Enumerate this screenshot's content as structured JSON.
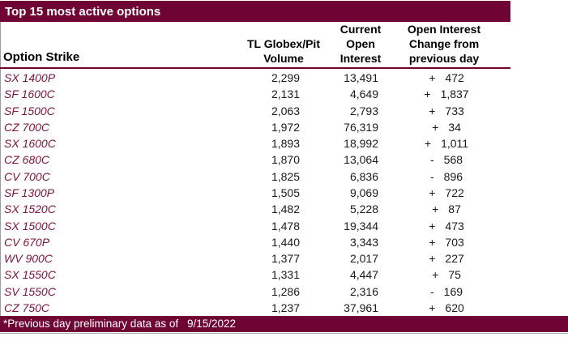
{
  "title_bar": {
    "title": "Top 15 most active options"
  },
  "header": {
    "strike_label": "Option Strike",
    "volume_lines": [
      "TL Globex/Pit",
      "Volume"
    ],
    "open_interest_lines": [
      "Current",
      "Open",
      "Interest"
    ],
    "change_lines": [
      "Open Interest",
      "Change from",
      "previous day"
    ]
  },
  "rows": [
    {
      "strike": "SX 1400P",
      "volume": "2,299",
      "open_interest": "13,491",
      "change_sign": "+",
      "change_value": "472"
    },
    {
      "strike": "SF 1600C",
      "volume": "2,131",
      "open_interest": "4,649",
      "change_sign": "+",
      "change_value": "1,837"
    },
    {
      "strike": "SF 1500C",
      "volume": "2,063",
      "open_interest": "2,793",
      "change_sign": "+",
      "change_value": "733"
    },
    {
      "strike": "CZ 700C",
      "volume": "1,972",
      "open_interest": "76,319",
      "change_sign": "+",
      "change_value": "34"
    },
    {
      "strike": "SX 1600C",
      "volume": "1,893",
      "open_interest": "18,992",
      "change_sign": "+",
      "change_value": "1,011"
    },
    {
      "strike": "CZ 680C",
      "volume": "1,870",
      "open_interest": "13,064",
      "change_sign": "-",
      "change_value": "568"
    },
    {
      "strike": "CV 700C",
      "volume": "1,825",
      "open_interest": "6,836",
      "change_sign": "-",
      "change_value": "896"
    },
    {
      "strike": "SF 1300P",
      "volume": "1,505",
      "open_interest": "9,069",
      "change_sign": "+",
      "change_value": "722"
    },
    {
      "strike": "SX 1520C",
      "volume": "1,482",
      "open_interest": "5,228",
      "change_sign": "+",
      "change_value": "87"
    },
    {
      "strike": "SX 1500C",
      "volume": "1,478",
      "open_interest": "19,344",
      "change_sign": "+",
      "change_value": "473"
    },
    {
      "strike": "CV 670P",
      "volume": "1,440",
      "open_interest": "3,343",
      "change_sign": "+",
      "change_value": "703"
    },
    {
      "strike": "WV 900C",
      "volume": "1,377",
      "open_interest": "2,017",
      "change_sign": "+",
      "change_value": "227"
    },
    {
      "strike": "SX 1550C",
      "volume": "1,331",
      "open_interest": "4,447",
      "change_sign": "+",
      "change_value": "75"
    },
    {
      "strike": "SV 1550C",
      "volume": "1,286",
      "open_interest": "2,316",
      "change_sign": "-",
      "change_value": "169"
    },
    {
      "strike": "CZ 750C",
      "volume": "1,237",
      "open_interest": "37,961",
      "change_sign": "+",
      "change_value": "620"
    }
  ],
  "footer": {
    "note": "*Previous day preliminary data as of",
    "date": "9/15/2022"
  },
  "colors": {
    "maroon": "#6e0334",
    "strike_text": "#7a1636",
    "body_text": "#1a1a1a",
    "border_gray": "#9d9d9d"
  },
  "chart_data": {
    "type": "table",
    "title": "Top 15 most active options",
    "columns": [
      "Option Strike",
      "TL Globex/Pit Volume",
      "Current Open Interest",
      "Open Interest Change from previous day"
    ],
    "rows": [
      [
        "SX 1400P",
        2299,
        13491,
        "+472"
      ],
      [
        "SF 1600C",
        2131,
        4649,
        "+1837"
      ],
      [
        "SF 1500C",
        2063,
        2793,
        "+733"
      ],
      [
        "CZ 700C",
        1972,
        76319,
        "+34"
      ],
      [
        "SX 1600C",
        1893,
        18992,
        "+1011"
      ],
      [
        "CZ 680C",
        1870,
        13064,
        "-568"
      ],
      [
        "CV 700C",
        1825,
        6836,
        "-896"
      ],
      [
        "SF 1300P",
        1505,
        9069,
        "+722"
      ],
      [
        "SX 1520C",
        1482,
        5228,
        "+87"
      ],
      [
        "SX 1500C",
        1478,
        19344,
        "+473"
      ],
      [
        "CV 670P",
        1440,
        3343,
        "+703"
      ],
      [
        "WV 900C",
        1377,
        2017,
        "+227"
      ],
      [
        "SX 1550C",
        1331,
        4447,
        "+75"
      ],
      [
        "SV 1550C",
        1286,
        2316,
        "-169"
      ],
      [
        "CZ 750C",
        1237,
        37961,
        "+620"
      ]
    ],
    "footnote": "*Previous day preliminary data as of 9/15/2022"
  }
}
